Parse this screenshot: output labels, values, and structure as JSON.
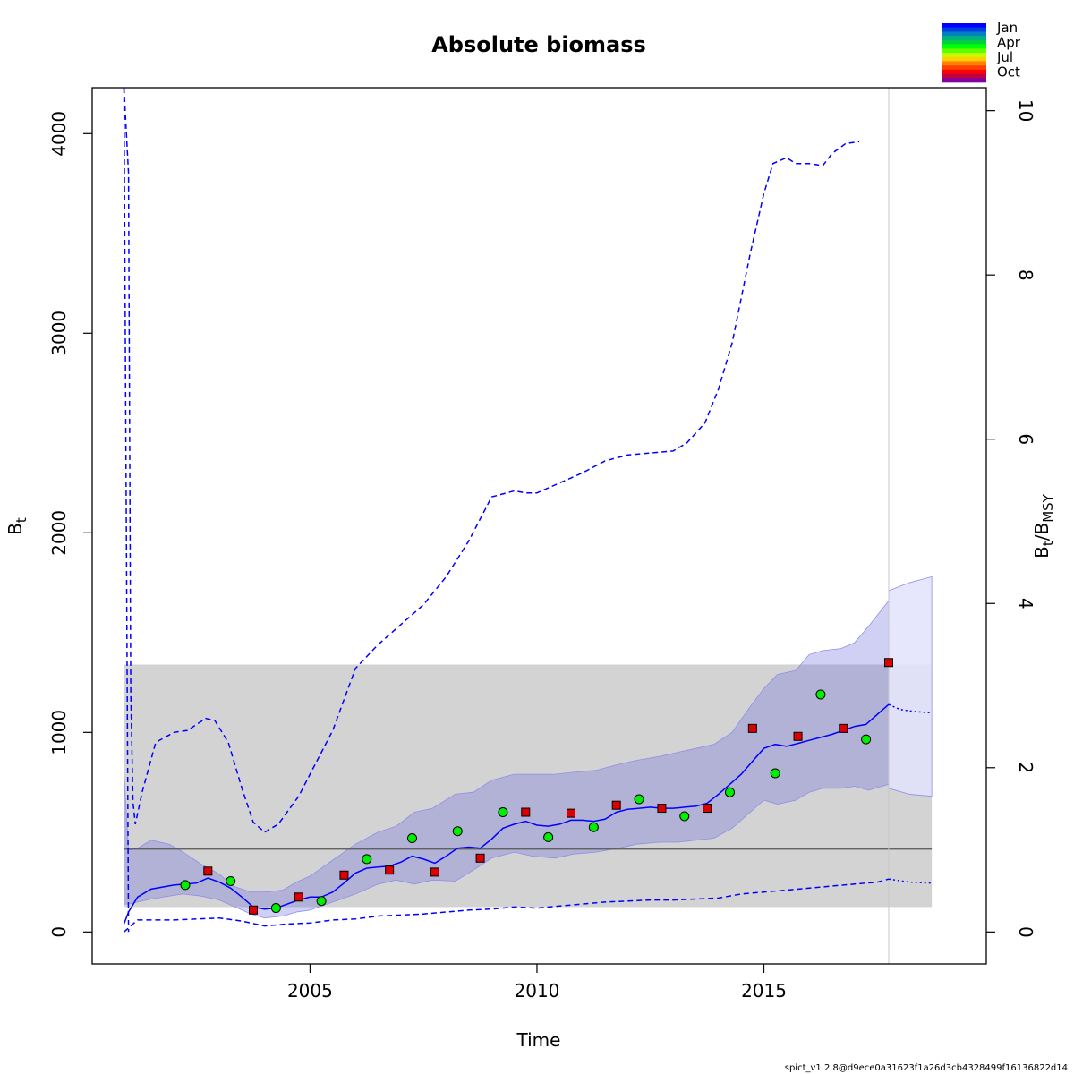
{
  "chart_data": {
    "type": "line",
    "title": "Absolute biomass",
    "xlabel": "Time",
    "ylabel_main": "B",
    "ylabel_sub": "t",
    "y2label_main": "B",
    "y2label_sub1": "t",
    "y2label_sep": "/B",
    "y2label_sub2": "MSY",
    "xlim": [
      2000.2,
      2019.9
    ],
    "ylim": [
      -160,
      4230
    ],
    "y2_ratio_per_unit": 411.5,
    "x_ticks": [
      2005,
      2010,
      2015
    ],
    "x_tick_labels": [
      "2005",
      "2010",
      "2015"
    ],
    "y_ticks": [
      0,
      1000,
      2000,
      3000,
      4000
    ],
    "y_tick_labels": [
      "0",
      "1000",
      "2000",
      "3000",
      "4000"
    ],
    "y2_ticks": [
      0,
      2,
      4,
      6,
      8,
      10
    ],
    "y2_tick_labels": [
      "0",
      "2",
      "4",
      "6",
      "8",
      "10"
    ],
    "colors": {
      "estimate": "#0000ff",
      "ci_band": "#b9b9dc",
      "ci_band_forecast": "#e2e2fb",
      "bmsy_band": "#d3d3d3",
      "bmsy_line": "#555555",
      "obs_jan_to_jun": "#00ee00",
      "obs_jul_to_dec": "#dd0000"
    },
    "bmsy": {
      "estimate": 415,
      "lower": 125,
      "upper": 1340,
      "x_range": [
        2000.9,
        2018.7
      ]
    },
    "last_observation_time": 2017.75,
    "series": [
      {
        "name": "Biomass estimate (B_t)",
        "style": "solid",
        "x": [
          2000.9,
          2001.0,
          2001.2,
          2001.5,
          2002.0,
          2002.5,
          2002.75,
          2003.0,
          2003.25,
          2003.5,
          2003.75,
          2004.0,
          2004.25,
          2004.5,
          2004.75,
          2005.0,
          2005.25,
          2005.5,
          2005.75,
          2006.0,
          2006.25,
          2006.5,
          2006.75,
          2007.0,
          2007.25,
          2007.5,
          2007.75,
          2008.0,
          2008.25,
          2008.5,
          2008.75,
          2009.0,
          2009.25,
          2009.5,
          2009.75,
          2010.0,
          2010.25,
          2010.5,
          2010.75,
          2011.0,
          2011.25,
          2011.5,
          2011.75,
          2012.0,
          2012.25,
          2012.5,
          2012.75,
          2013.0,
          2013.25,
          2013.5,
          2013.75,
          2014.0,
          2014.25,
          2014.5,
          2014.75,
          2015.0,
          2015.25,
          2015.5,
          2015.75,
          2016.0,
          2016.25,
          2016.5,
          2016.75,
          2017.0,
          2017.25,
          2017.5,
          2017.75
        ],
        "values": [
          40,
          100,
          175,
          215,
          235,
          245,
          270,
          250,
          220,
          175,
          125,
          115,
          120,
          140,
          160,
          175,
          175,
          200,
          245,
          295,
          320,
          325,
          330,
          350,
          380,
          365,
          345,
          380,
          420,
          425,
          420,
          465,
          520,
          540,
          555,
          535,
          530,
          540,
          560,
          560,
          555,
          565,
          600,
          615,
          620,
          625,
          620,
          620,
          625,
          630,
          645,
          690,
          740,
          790,
          855,
          920,
          940,
          930,
          945,
          960,
          975,
          990,
          1010,
          1030,
          1040,
          1090,
          1140
        ]
      },
      {
        "name": "Biomass forecast",
        "style": "dotted",
        "x": [
          2017.75,
          2018.0,
          2018.3,
          2018.7
        ],
        "values": [
          1140,
          1115,
          1105,
          1098
        ]
      },
      {
        "name": "CI upper (B_t)",
        "style": "dashed",
        "x": [
          2000.9,
          2001.0,
          2001.05,
          2001.1,
          2001.15,
          2001.3,
          2001.6,
          2002.0,
          2002.3,
          2002.7,
          2002.9,
          2003.2,
          2003.5,
          2003.75,
          2004.0,
          2004.3,
          2004.75,
          2005.0,
          2005.5,
          2006.0,
          2006.5,
          2007.0,
          2007.5,
          2008.0,
          2008.5,
          2009.0,
          2009.5,
          2009.75,
          2010.0,
          2010.5,
          2011.0,
          2011.5,
          2012.0,
          2012.5,
          2013.0,
          2013.3,
          2013.7,
          2014.0,
          2014.3,
          2014.7,
          2015.0,
          2015.2,
          2015.5,
          2015.7,
          2016.0,
          2016.3,
          2016.5,
          2016.8,
          2017.1
        ],
        "values": [
          4230,
          3800,
          1200,
          650,
          540,
          700,
          950,
          1000,
          1010,
          1070,
          1060,
          950,
          720,
          550,
          500,
          540,
          680,
          790,
          1010,
          1320,
          1440,
          1540,
          1640,
          1780,
          1960,
          2180,
          2210,
          2200,
          2200,
          2250,
          2300,
          2360,
          2390,
          2400,
          2410,
          2450,
          2550,
          2720,
          2950,
          3400,
          3700,
          3850,
          3880,
          3850,
          3850,
          3840,
          3900,
          3950,
          3960
        ]
      },
      {
        "name": "CI upper (B_t/B_MSY axis)",
        "style": "dashed",
        "x": [
          2000.9,
          2001.0
        ],
        "values": [
          4230,
          0
        ]
      },
      {
        "name": "CI lower (B_t)",
        "style": "dashed",
        "x": [
          2000.9,
          2001.2,
          2002.0,
          2002.5,
          2003.0,
          2003.5,
          2004.0,
          2004.5,
          2005.0,
          2005.5,
          2006.0,
          2006.5,
          2007.0,
          2007.5,
          2008.0,
          2008.5,
          2009.0,
          2009.5,
          2010.0,
          2010.5,
          2011.0,
          2011.5,
          2012.0,
          2012.5,
          2013.0,
          2013.5,
          2014.0,
          2014.5,
          2015.0,
          2015.5,
          2016.0,
          2016.5,
          2017.0,
          2017.5,
          2017.75
        ],
        "values": [
          0,
          60,
          60,
          65,
          70,
          55,
          30,
          40,
          45,
          60,
          65,
          80,
          85,
          90,
          100,
          110,
          115,
          125,
          120,
          130,
          140,
          150,
          155,
          160,
          160,
          165,
          170,
          190,
          200,
          210,
          220,
          230,
          240,
          250,
          265
        ]
      },
      {
        "name": "CI lower forecast",
        "style": "dotted",
        "x": [
          2017.75,
          2018.2,
          2018.7
        ],
        "values": [
          265,
          250,
          245
        ]
      }
    ],
    "ci_band": {
      "x": [
        2000.9,
        2001.0,
        2001.2,
        2001.5,
        2001.9,
        2002.2,
        2002.6,
        2003.0,
        2003.3,
        2003.7,
        2004.0,
        2004.4,
        2004.7,
        2005.0,
        2005.5,
        2006.0,
        2006.5,
        2006.9,
        2007.3,
        2007.7,
        2008.2,
        2008.6,
        2009.0,
        2009.5,
        2009.9,
        2010.4,
        2010.8,
        2011.3,
        2011.8,
        2012.2,
        2012.7,
        2013.1,
        2013.5,
        2013.9,
        2014.3,
        2014.7,
        2015.0,
        2015.3,
        2015.7,
        2016.0,
        2016.3,
        2016.7,
        2017.0,
        2017.3,
        2017.75
      ],
      "upper": [
        800,
        410,
        420,
        460,
        440,
        400,
        340,
        290,
        230,
        200,
        200,
        210,
        250,
        280,
        360,
        440,
        500,
        530,
        600,
        620,
        690,
        700,
        760,
        790,
        790,
        790,
        800,
        810,
        840,
        860,
        880,
        900,
        920,
        940,
        1000,
        1130,
        1220,
        1290,
        1310,
        1390,
        1410,
        1420,
        1450,
        1530,
        1660
      ],
      "lower": [
        140,
        140,
        150,
        165,
        180,
        190,
        180,
        160,
        130,
        90,
        70,
        80,
        100,
        110,
        150,
        190,
        240,
        260,
        240,
        260,
        255,
        310,
        370,
        400,
        380,
        370,
        390,
        400,
        420,
        440,
        450,
        450,
        460,
        470,
        520,
        600,
        660,
        640,
        660,
        700,
        720,
        720,
        730,
        710,
        740
      ]
    },
    "forecast_band": {
      "x": [
        2017.75,
        2018.2,
        2018.7
      ],
      "upper": [
        1710,
        1750,
        1780
      ],
      "lower": [
        720,
        690,
        680
      ]
    },
    "observations": [
      {
        "x": 2002.25,
        "y": 235,
        "marker": "circle",
        "season": "Apr"
      },
      {
        "x": 2002.75,
        "y": 305,
        "marker": "square",
        "season": "Oct"
      },
      {
        "x": 2003.25,
        "y": 255,
        "marker": "circle",
        "season": "Apr"
      },
      {
        "x": 2003.75,
        "y": 110,
        "marker": "square",
        "season": "Oct"
      },
      {
        "x": 2004.25,
        "y": 120,
        "marker": "circle",
        "season": "Apr"
      },
      {
        "x": 2004.75,
        "y": 175,
        "marker": "square",
        "season": "Oct"
      },
      {
        "x": 2005.25,
        "y": 155,
        "marker": "circle",
        "season": "Apr"
      },
      {
        "x": 2005.75,
        "y": 285,
        "marker": "square",
        "season": "Oct"
      },
      {
        "x": 2006.25,
        "y": 365,
        "marker": "circle",
        "season": "Apr"
      },
      {
        "x": 2006.75,
        "y": 310,
        "marker": "square",
        "season": "Oct"
      },
      {
        "x": 2007.25,
        "y": 470,
        "marker": "circle",
        "season": "Apr"
      },
      {
        "x": 2007.75,
        "y": 300,
        "marker": "square",
        "season": "Oct"
      },
      {
        "x": 2008.25,
        "y": 505,
        "marker": "circle",
        "season": "Apr"
      },
      {
        "x": 2008.75,
        "y": 370,
        "marker": "square",
        "season": "Oct"
      },
      {
        "x": 2009.25,
        "y": 600,
        "marker": "circle",
        "season": "Apr"
      },
      {
        "x": 2009.75,
        "y": 600,
        "marker": "square",
        "season": "Oct"
      },
      {
        "x": 2010.25,
        "y": 475,
        "marker": "circle",
        "season": "Apr"
      },
      {
        "x": 2010.75,
        "y": 595,
        "marker": "square",
        "season": "Oct"
      },
      {
        "x": 2011.25,
        "y": 525,
        "marker": "circle",
        "season": "Apr"
      },
      {
        "x": 2011.75,
        "y": 635,
        "marker": "square",
        "season": "Oct"
      },
      {
        "x": 2012.25,
        "y": 665,
        "marker": "circle",
        "season": "Apr"
      },
      {
        "x": 2012.75,
        "y": 620,
        "marker": "square",
        "season": "Oct"
      },
      {
        "x": 2013.25,
        "y": 580,
        "marker": "circle",
        "season": "Apr"
      },
      {
        "x": 2013.75,
        "y": 620,
        "marker": "square",
        "season": "Oct"
      },
      {
        "x": 2014.25,
        "y": 700,
        "marker": "circle",
        "season": "Apr"
      },
      {
        "x": 2014.75,
        "y": 1020,
        "marker": "square",
        "season": "Oct"
      },
      {
        "x": 2015.25,
        "y": 795,
        "marker": "circle",
        "season": "Apr"
      },
      {
        "x": 2015.75,
        "y": 980,
        "marker": "square",
        "season": "Oct"
      },
      {
        "x": 2016.25,
        "y": 1190,
        "marker": "circle",
        "season": "Apr"
      },
      {
        "x": 2016.75,
        "y": 1020,
        "marker": "square",
        "season": "Oct"
      },
      {
        "x": 2017.25,
        "y": 965,
        "marker": "circle",
        "season": "Apr"
      },
      {
        "x": 2017.75,
        "y": 1350,
        "marker": "square",
        "season": "Oct"
      }
    ],
    "legend": {
      "placement": "top-right",
      "labels": [
        "Jan",
        "Apr",
        "Jul",
        "Oct"
      ],
      "colors": [
        "#0000ff",
        "#0040e0",
        "#0080c0",
        "#00b080",
        "#00d040",
        "#00ff00",
        "#60ff00",
        "#c0ff00",
        "#ffd000",
        "#ff8000",
        "#ff4000",
        "#ff0000",
        "#c00040",
        "#8000a0"
      ]
    },
    "footer": "spict_v1.2.8@d9ece0a31623f1a26d3cb4328499f16136822d14"
  }
}
